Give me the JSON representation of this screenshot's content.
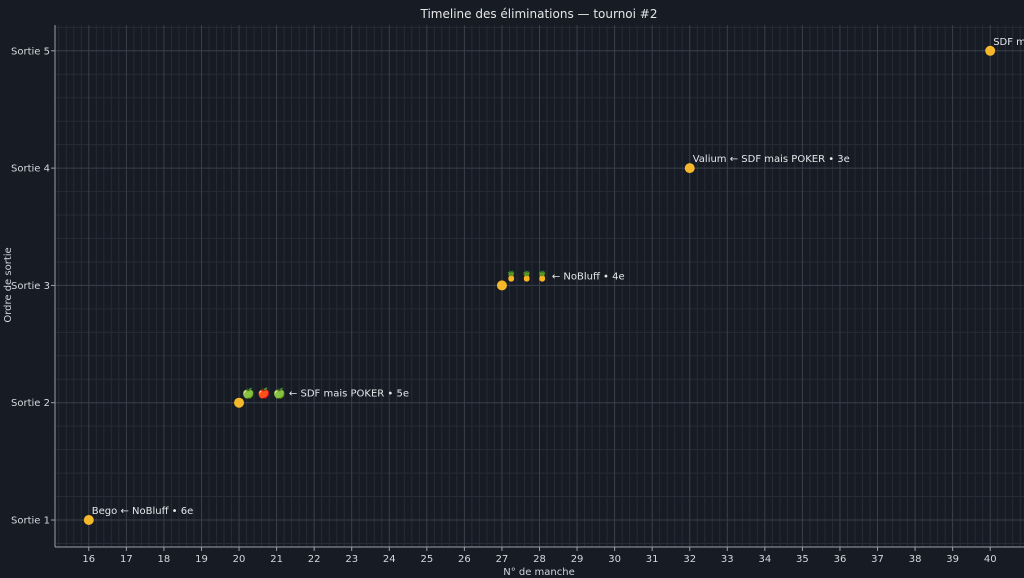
{
  "chart_data": {
    "type": "scatter",
    "title": "Timeline des éliminations — tournoi #2",
    "xlabel": "N° de manche",
    "ylabel": "Ordre de sortie",
    "xlim": [
      15.1,
      40.9
    ],
    "ylim": [
      0.77,
      5.22
    ],
    "x_ticks": [
      16,
      17,
      18,
      19,
      20,
      21,
      22,
      23,
      24,
      25,
      26,
      27,
      28,
      29,
      30,
      31,
      32,
      33,
      34,
      35,
      36,
      37,
      38,
      39,
      40
    ],
    "y_ticks": [
      1,
      2,
      3,
      4,
      5
    ],
    "y_tick_labels": [
      "Sortie 1",
      "Sortie 2",
      "Sortie 3",
      "Sortie 4",
      "Sortie 5"
    ],
    "grid": true,
    "point_color": "#f5b82a",
    "points": [
      {
        "x": 16,
        "y": 1,
        "label": "Bego ← NoBluff • 6e"
      },
      {
        "x": 20,
        "y": 2,
        "label": "🍏 🍎 🍏 ← SDF mais POKER • 5e"
      },
      {
        "x": 27,
        "y": 3,
        "label": "🍍 🍍 🍍 ← NoBluff • 4e"
      },
      {
        "x": 32,
        "y": 4,
        "label": "Valium ← SDF mais POKER • 3e"
      },
      {
        "x": 40,
        "y": 5,
        "label": "SDF ma"
      }
    ]
  }
}
